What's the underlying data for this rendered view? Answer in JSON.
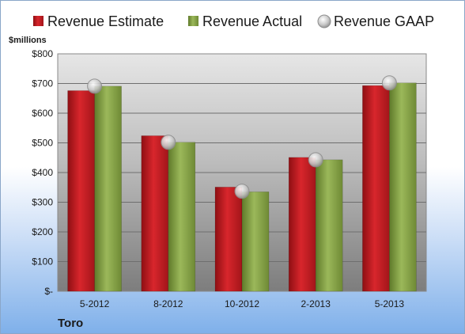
{
  "chart_data": {
    "type": "bar",
    "company": "Toro",
    "ylabel": "$millions",
    "categories": [
      "5-2012",
      "8-2012",
      "10-2012",
      "2-2013",
      "5-2013"
    ],
    "series": [
      {
        "name": "Revenue Estimate",
        "kind": "bar",
        "color": "#cc1f25",
        "values": [
          676,
          524,
          351,
          451,
          693
        ]
      },
      {
        "name": "Revenue Actual",
        "kind": "bar",
        "color": "#8aa64a",
        "values": [
          691,
          502,
          335,
          443,
          702
        ]
      },
      {
        "name": "Revenue GAAP",
        "kind": "marker",
        "color": "#b8b8b8",
        "values": [
          691,
          502,
          337,
          443,
          702
        ]
      }
    ],
    "ylim": [
      0,
      800
    ],
    "yticks": [
      0,
      100,
      200,
      300,
      400,
      500,
      600,
      700,
      800
    ],
    "ytick_labels": [
      "$-",
      "$100",
      "$200",
      "$300",
      "$400",
      "$500",
      "$600",
      "$700",
      "$800"
    ],
    "grid": true,
    "legend_position": "top"
  }
}
